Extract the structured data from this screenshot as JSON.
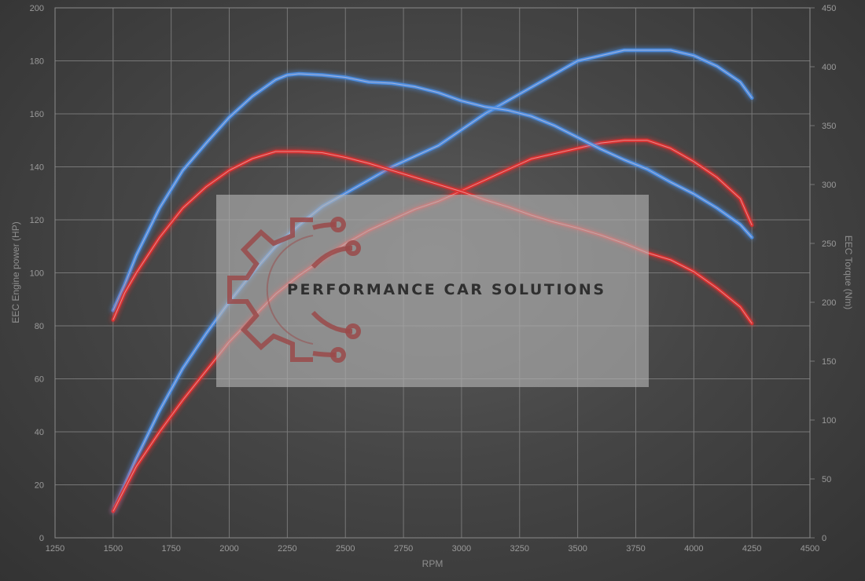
{
  "watermark": {
    "text": "PERFORMANCE CAR SOLUTIONS",
    "logo_icon": "gear-circuit-icon"
  },
  "chart_data": {
    "type": "line",
    "xlabel": "RPM",
    "ylabel_left": "EEC Engine power (HP)",
    "ylabel_right": "EEC Torque (Nm)",
    "xlim": [
      1250,
      4500
    ],
    "ylim_left": [
      0,
      200
    ],
    "ylim_right": [
      0,
      450
    ],
    "x_ticks": [
      1250,
      1500,
      1750,
      2000,
      2250,
      2500,
      2750,
      3000,
      3250,
      3500,
      3750,
      4000,
      4250,
      4500
    ],
    "y_ticks_left": [
      0,
      20,
      40,
      60,
      80,
      100,
      120,
      140,
      160,
      180,
      200
    ],
    "y_ticks_right": [
      0,
      50,
      100,
      150,
      200,
      250,
      300,
      350,
      400,
      450
    ],
    "grid": true,
    "legend": "none",
    "colors": {
      "tuned": "#4a90e8",
      "stock": "#e03030"
    },
    "series": [
      {
        "axis": "left",
        "color_key": "tuned",
        "x": [
          1500,
          1600,
          1700,
          1800,
          1900,
          2000,
          2100,
          2200,
          2300,
          2400,
          2500,
          2600,
          2700,
          2800,
          2900,
          3000,
          3100,
          3200,
          3300,
          3400,
          3500,
          3600,
          3700,
          3800,
          3900,
          4000,
          4100,
          4200,
          4250
        ],
        "values": [
          10,
          30,
          48,
          64,
          77,
          89,
          100,
          110,
          118,
          125,
          130,
          135,
          140,
          144,
          148,
          154,
          160,
          165,
          170,
          175,
          180,
          182,
          184,
          184,
          184,
          182,
          178,
          172,
          166
        ]
      },
      {
        "axis": "left",
        "color_key": "stock",
        "x": [
          1500,
          1600,
          1700,
          1800,
          1900,
          2000,
          2100,
          2200,
          2300,
          2400,
          2500,
          2600,
          2700,
          2800,
          2900,
          3000,
          3100,
          3200,
          3300,
          3400,
          3500,
          3600,
          3700,
          3800,
          3900,
          4000,
          4100,
          4200,
          4250
        ],
        "values": [
          10,
          27,
          40,
          52,
          63,
          74,
          83,
          92,
          99,
          105,
          111,
          116,
          120,
          124,
          127,
          131,
          135,
          139,
          143,
          145,
          147,
          149,
          150,
          150,
          147,
          142,
          136,
          128,
          118
        ]
      },
      {
        "axis": "right",
        "color_key": "tuned",
        "x": [
          1500,
          1550,
          1600,
          1700,
          1800,
          1900,
          2000,
          2100,
          2200,
          2250,
          2300,
          2400,
          2500,
          2600,
          2700,
          2800,
          2900,
          3000,
          3100,
          3200,
          3300,
          3400,
          3500,
          3600,
          3700,
          3800,
          3900,
          4000,
          4100,
          4200,
          4250
        ],
        "values": [
          193,
          215,
          240,
          280,
          312,
          335,
          357,
          375,
          389,
          393,
          394,
          393,
          391,
          387,
          386,
          383,
          378,
          371,
          366,
          363,
          358,
          350,
          340,
          330,
          321,
          313,
          302,
          292,
          280,
          266,
          255
        ]
      },
      {
        "axis": "right",
        "color_key": "stock",
        "x": [
          1500,
          1550,
          1600,
          1700,
          1800,
          1900,
          2000,
          2100,
          2200,
          2250,
          2300,
          2400,
          2500,
          2600,
          2700,
          2800,
          2900,
          3000,
          3100,
          3200,
          3300,
          3400,
          3500,
          3600,
          3700,
          3800,
          3900,
          4000,
          4100,
          4200,
          4250
        ],
        "values": [
          185,
          208,
          225,
          255,
          280,
          298,
          312,
          322,
          328,
          328,
          328,
          327,
          323,
          318,
          312,
          306,
          300,
          294,
          287,
          281,
          274,
          268,
          263,
          257,
          250,
          242,
          236,
          226,
          212,
          196,
          182
        ]
      }
    ]
  }
}
